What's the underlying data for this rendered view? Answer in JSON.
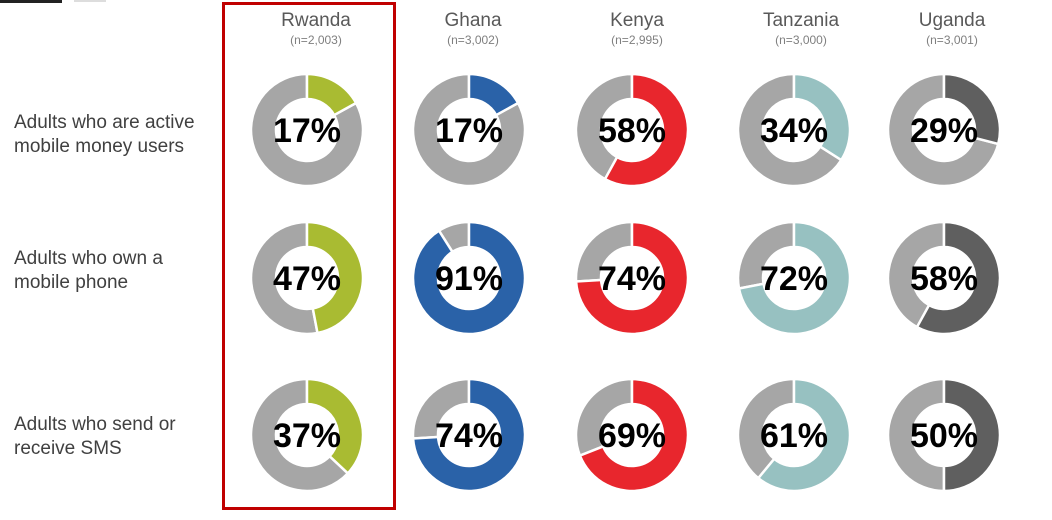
{
  "chart_data": {
    "type": "donut-grid",
    "columns": [
      {
        "name": "Rwanda",
        "n": "(n=2,003)",
        "color": "#a9bb32"
      },
      {
        "name": "Ghana",
        "n": "(n=3,002)",
        "color": "#2a62a8"
      },
      {
        "name": "Kenya",
        "n": "(n=2,995)",
        "color": "#e8262d"
      },
      {
        "name": "Tanzania",
        "n": "(n=3,000)",
        "color": "#97c1c1"
      },
      {
        "name": "Uganda",
        "n": "(n=3,001)",
        "color": "#5f5f5f"
      }
    ],
    "rows": [
      {
        "label": "Adults who are active\nmobile money users",
        "values": [
          17,
          17,
          58,
          34,
          29
        ],
        "labels": [
          "17%",
          "17%",
          "58%",
          "34%",
          "29%"
        ]
      },
      {
        "label": "Adults who own a\nmobile phone",
        "values": [
          47,
          91,
          74,
          72,
          58
        ],
        "labels": [
          "47%",
          "91%",
          "74%",
          "72%",
          "58%"
        ]
      },
      {
        "label": "Adults who send or\nreceive SMS",
        "values": [
          37,
          74,
          69,
          61,
          50
        ],
        "labels": [
          "37%",
          "74%",
          "69%",
          "61%",
          "50%"
        ]
      }
    ],
    "remainder_color": "#a6a6a6",
    "highlighted_column": "Rwanda",
    "highlight_color": "#c00000"
  }
}
